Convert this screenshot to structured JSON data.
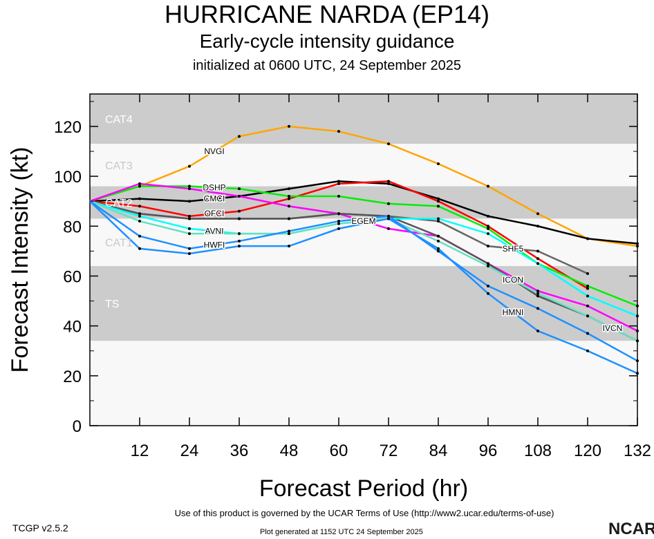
{
  "header": {
    "title": "HURRICANE NARDA (EP14)",
    "subtitle": "Early-cycle intensity guidance",
    "init": "initialized at 0600 UTC, 24 September 2025"
  },
  "footer": {
    "version": "TCGP v2.5.2",
    "terms": "Use of this product is governed by the UCAR Terms of Use (http://www2.ucar.edu/terms-of-use)",
    "generated": "Plot generated at 1152 UTC  24 September 2025",
    "logo": "NCAR"
  },
  "chart_data": {
    "type": "line",
    "xlabel": "Forecast Period (hr)",
    "ylabel": "Forecast Intensity (kt)",
    "xlim": [
      0,
      132
    ],
    "ylim": [
      0,
      133
    ],
    "xticks": [
      12,
      24,
      36,
      48,
      60,
      72,
      84,
      96,
      108,
      120,
      132
    ],
    "yticks": [
      0,
      20,
      40,
      60,
      80,
      100,
      120
    ],
    "bands": [
      {
        "label": "CAT4",
        "from": 113,
        "to": 133,
        "color": "#cccccc"
      },
      {
        "label": "CAT3",
        "from": 96,
        "to": 113,
        "color": "#f8f8f8"
      },
      {
        "label": "CAT2",
        "from": 83,
        "to": 96,
        "color": "#cccccc"
      },
      {
        "label": "CAT1",
        "from": 64,
        "to": 83,
        "color": "#f8f8f8"
      },
      {
        "label": "TS",
        "from": 34,
        "to": 64,
        "color": "#cccccc"
      },
      {
        "label": "",
        "from": 0,
        "to": 34,
        "color": "#f8f8f8"
      }
    ],
    "x": [
      0,
      12,
      24,
      36,
      48,
      60,
      72,
      84,
      96,
      108,
      120,
      132
    ],
    "series": [
      {
        "name": "NVGI",
        "color": "#ffa500",
        "values": [
          90,
          96,
          104,
          116,
          120,
          118,
          113,
          105,
          96,
          85,
          75,
          72
        ]
      },
      {
        "name": "CMCI",
        "color": "#000000",
        "values": [
          90,
          91,
          90,
          92,
          95,
          98,
          97,
          91,
          84,
          80,
          75,
          73
        ]
      },
      {
        "name": "OFCI",
        "color": "#ff0000",
        "values": [
          90,
          88,
          84,
          86,
          91,
          97,
          98,
          90,
          80,
          67,
          55,
          null
        ]
      },
      {
        "name": "DSHP",
        "color": "#00ee00",
        "values": [
          90,
          96,
          96,
          95,
          92,
          92,
          89,
          88,
          79,
          65,
          56,
          48
        ]
      },
      {
        "name": "EGEM",
        "color": "#ff00ff",
        "values": [
          90,
          97,
          95,
          92,
          88,
          85,
          79,
          76,
          65,
          54,
          48,
          38
        ]
      },
      {
        "name": "SHF5",
        "color": "#666666",
        "values": [
          90,
          85,
          83,
          83,
          83,
          85,
          84,
          82,
          72,
          70,
          61,
          null
        ]
      },
      {
        "name": "ICON",
        "color": "#555555",
        "values": [
          90,
          85,
          83,
          83,
          83,
          85,
          84,
          76,
          65,
          52,
          44,
          34
        ]
      },
      {
        "name": "AVNI",
        "color": "#00ffff",
        "values": [
          90,
          84,
          79,
          77,
          77,
          81,
          83,
          83,
          77,
          65,
          52,
          44
        ]
      },
      {
        "name": "IVCN",
        "color": "#66e0c0",
        "values": [
          90,
          82,
          77,
          77,
          77,
          81,
          83,
          74,
          64,
          53,
          44,
          34
        ]
      },
      {
        "name": "HWFI",
        "color": "#1e90ff",
        "values": [
          90,
          76,
          71,
          74,
          78,
          82,
          84,
          70,
          56,
          47,
          37,
          26
        ]
      },
      {
        "name": "HMNI",
        "color": "#1e90ff",
        "values": [
          90,
          71,
          69,
          72,
          72,
          79,
          83,
          71,
          53,
          38,
          30,
          21
        ]
      }
    ],
    "series_labels_at": [
      24,
      60,
      96,
      120
    ]
  }
}
